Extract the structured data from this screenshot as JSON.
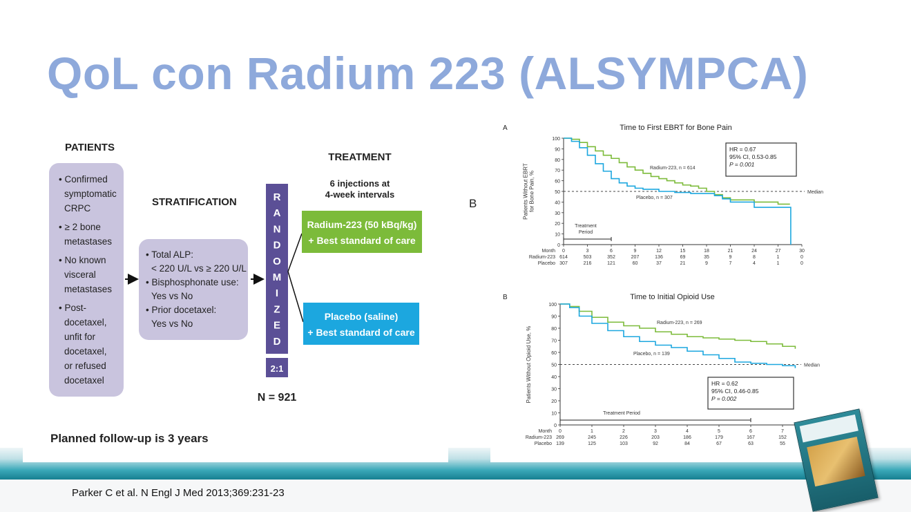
{
  "slide": {
    "title": "QoL con Radium 223 (ALSYMPCA)",
    "citation": "Parker C et al. N Engl J Med 2013;369:231-23"
  },
  "design": {
    "patients_heading": "PATIENTS",
    "patients_items": [
      [
        "• Confirmed",
        "symptomatic",
        "CRPC"
      ],
      [
        "• ≥ 2 bone",
        "metastases"
      ],
      [
        "• No known",
        "visceral",
        "metastases"
      ],
      [
        "• Post-",
        "docetaxel,",
        "unfit for",
        "docetaxel,",
        "or refused",
        "docetaxel"
      ]
    ],
    "stratification_heading": "STRATIFICATION",
    "stratification_items": [
      "• Total ALP:",
      "< 220 U/L vs ≥ 220 U/L",
      "• Bisphosphonate use:",
      "Yes vs No",
      "• Prior docetaxel:",
      "Yes vs No"
    ],
    "randomized_letters": [
      "R",
      "A",
      "N",
      "D",
      "O",
      "M",
      "I",
      "Z",
      "E",
      "D"
    ],
    "ratio": "2:1",
    "n_total": "N = 921",
    "treatment_heading": "TREATMENT",
    "treatment_sub": [
      "6 injections at",
      "4-week intervals"
    ],
    "arm_radium": [
      "Radium-223 (50 kBq/kg)",
      "+ Best standard of care"
    ],
    "arm_placebo": [
      "Placebo (saline)",
      "+ Best standard of care"
    ],
    "followup": "Planned follow-up is 3 years",
    "side_label": "B",
    "colors": {
      "box": "#c9c4de",
      "randomized": "#5b4f96",
      "radium": "#7cbb3a",
      "placebo": "#1ca7df"
    }
  },
  "chart_data": [
    {
      "type": "line",
      "panel_label": "A",
      "title": "Time to First EBRT for Bone Pain",
      "ylabel": [
        "Patients Without EBRT",
        "for Bone Pain, %"
      ],
      "xlabel": "Month",
      "xlim": [
        0,
        30
      ],
      "ylim": [
        0,
        100
      ],
      "xticks": [
        0,
        3,
        6,
        9,
        12,
        15,
        18,
        21,
        24,
        27,
        30
      ],
      "yticks": [
        0,
        10,
        20,
        30,
        40,
        50,
        60,
        70,
        80,
        90,
        100
      ],
      "median_label": "Median",
      "median_y": 50,
      "stats": {
        "hr": "HR = 0.67",
        "ci": "95% CI, 0.53-0.85",
        "p": "P = 0.001"
      },
      "treatment_period": {
        "label": [
          "Treatment",
          "Period"
        ],
        "x": [
          0,
          6
        ]
      },
      "series": [
        {
          "name": "Radium-223, n = 614",
          "color": "#7cbb3a",
          "x": [
            0,
            1,
            2,
            3,
            4,
            5,
            6,
            7,
            8,
            9,
            10,
            11,
            12,
            13,
            14,
            15,
            16,
            17,
            18,
            19,
            20,
            21,
            24,
            27,
            28.5
          ],
          "y": [
            100,
            99,
            96,
            92,
            88,
            84,
            81,
            77,
            73,
            70,
            67,
            64,
            62,
            60,
            58,
            56,
            55,
            53,
            50,
            47,
            44,
            42,
            40,
            38,
            38
          ]
        },
        {
          "name": "Placebo, n = 307",
          "color": "#1ca7df",
          "x": [
            0,
            1,
            2,
            3,
            4,
            5,
            6,
            7,
            8,
            9,
            10,
            12,
            14,
            16,
            18,
            19,
            20,
            21,
            24,
            27,
            28.5,
            28.6
          ],
          "y": [
            100,
            97,
            91,
            84,
            76,
            69,
            62,
            58,
            55,
            53,
            52,
            50,
            49,
            48,
            48,
            46,
            43,
            40,
            35,
            35,
            35,
            0
          ]
        }
      ],
      "at_risk": {
        "labels": [
          "Radium-223",
          "Placebo"
        ],
        "rows": [
          [
            "614",
            "503",
            "352",
            "207",
            "136",
            "69",
            "35",
            "9",
            "8",
            "1",
            "0"
          ],
          [
            "307",
            "216",
            "121",
            "60",
            "37",
            "21",
            "9",
            "7",
            "4",
            "1",
            "0"
          ]
        ]
      }
    },
    {
      "type": "line",
      "panel_label": "B",
      "title": "Time to Initial Opioid Use",
      "ylabel": [
        "Patients Without Opioid Use, %"
      ],
      "xlabel": "Month",
      "xlim": [
        0,
        7.5
      ],
      "ylim": [
        0,
        100
      ],
      "xticks": [
        0,
        1,
        2,
        3,
        4,
        5,
        6,
        7
      ],
      "yticks": [
        0,
        10,
        20,
        30,
        40,
        50,
        60,
        70,
        80,
        90,
        100
      ],
      "median_label": "Median",
      "median_y": 50,
      "stats": {
        "hr": "HR = 0.62",
        "ci": "95% CI, 0.46-0.85",
        "p": "P = 0.002"
      },
      "treatment_period": {
        "label": [
          "Treatment Period"
        ],
        "x": [
          0,
          6
        ]
      },
      "series": [
        {
          "name": "Radium-223, n = 269",
          "color": "#7cbb3a",
          "x": [
            0,
            0.3,
            0.6,
            1,
            1.5,
            2,
            2.5,
            3,
            3.5,
            4,
            4.5,
            5,
            5.5,
            6,
            6.5,
            7,
            7.4
          ],
          "y": [
            100,
            98,
            94,
            89,
            85,
            82,
            80,
            77,
            75,
            73,
            72,
            71,
            70,
            69,
            67,
            65,
            63
          ]
        },
        {
          "name": "Placebo, n = 139",
          "color": "#1ca7df",
          "x": [
            0,
            0.3,
            0.6,
            1,
            1.5,
            2,
            2.5,
            3,
            3.5,
            4,
            4.5,
            5,
            5.5,
            6,
            6.5,
            7,
            7.4
          ],
          "y": [
            100,
            97,
            90,
            84,
            78,
            73,
            69,
            66,
            64,
            61,
            58,
            55,
            52,
            51,
            50,
            49,
            47
          ]
        }
      ],
      "at_risk": {
        "labels": [
          "Radium-223",
          "Placebo"
        ],
        "rows": [
          [
            "269",
            "245",
            "226",
            "203",
            "186",
            "179",
            "167",
            "152"
          ],
          [
            "139",
            "125",
            "103",
            "92",
            "84",
            "67",
            "63",
            "55"
          ]
        ]
      }
    }
  ]
}
